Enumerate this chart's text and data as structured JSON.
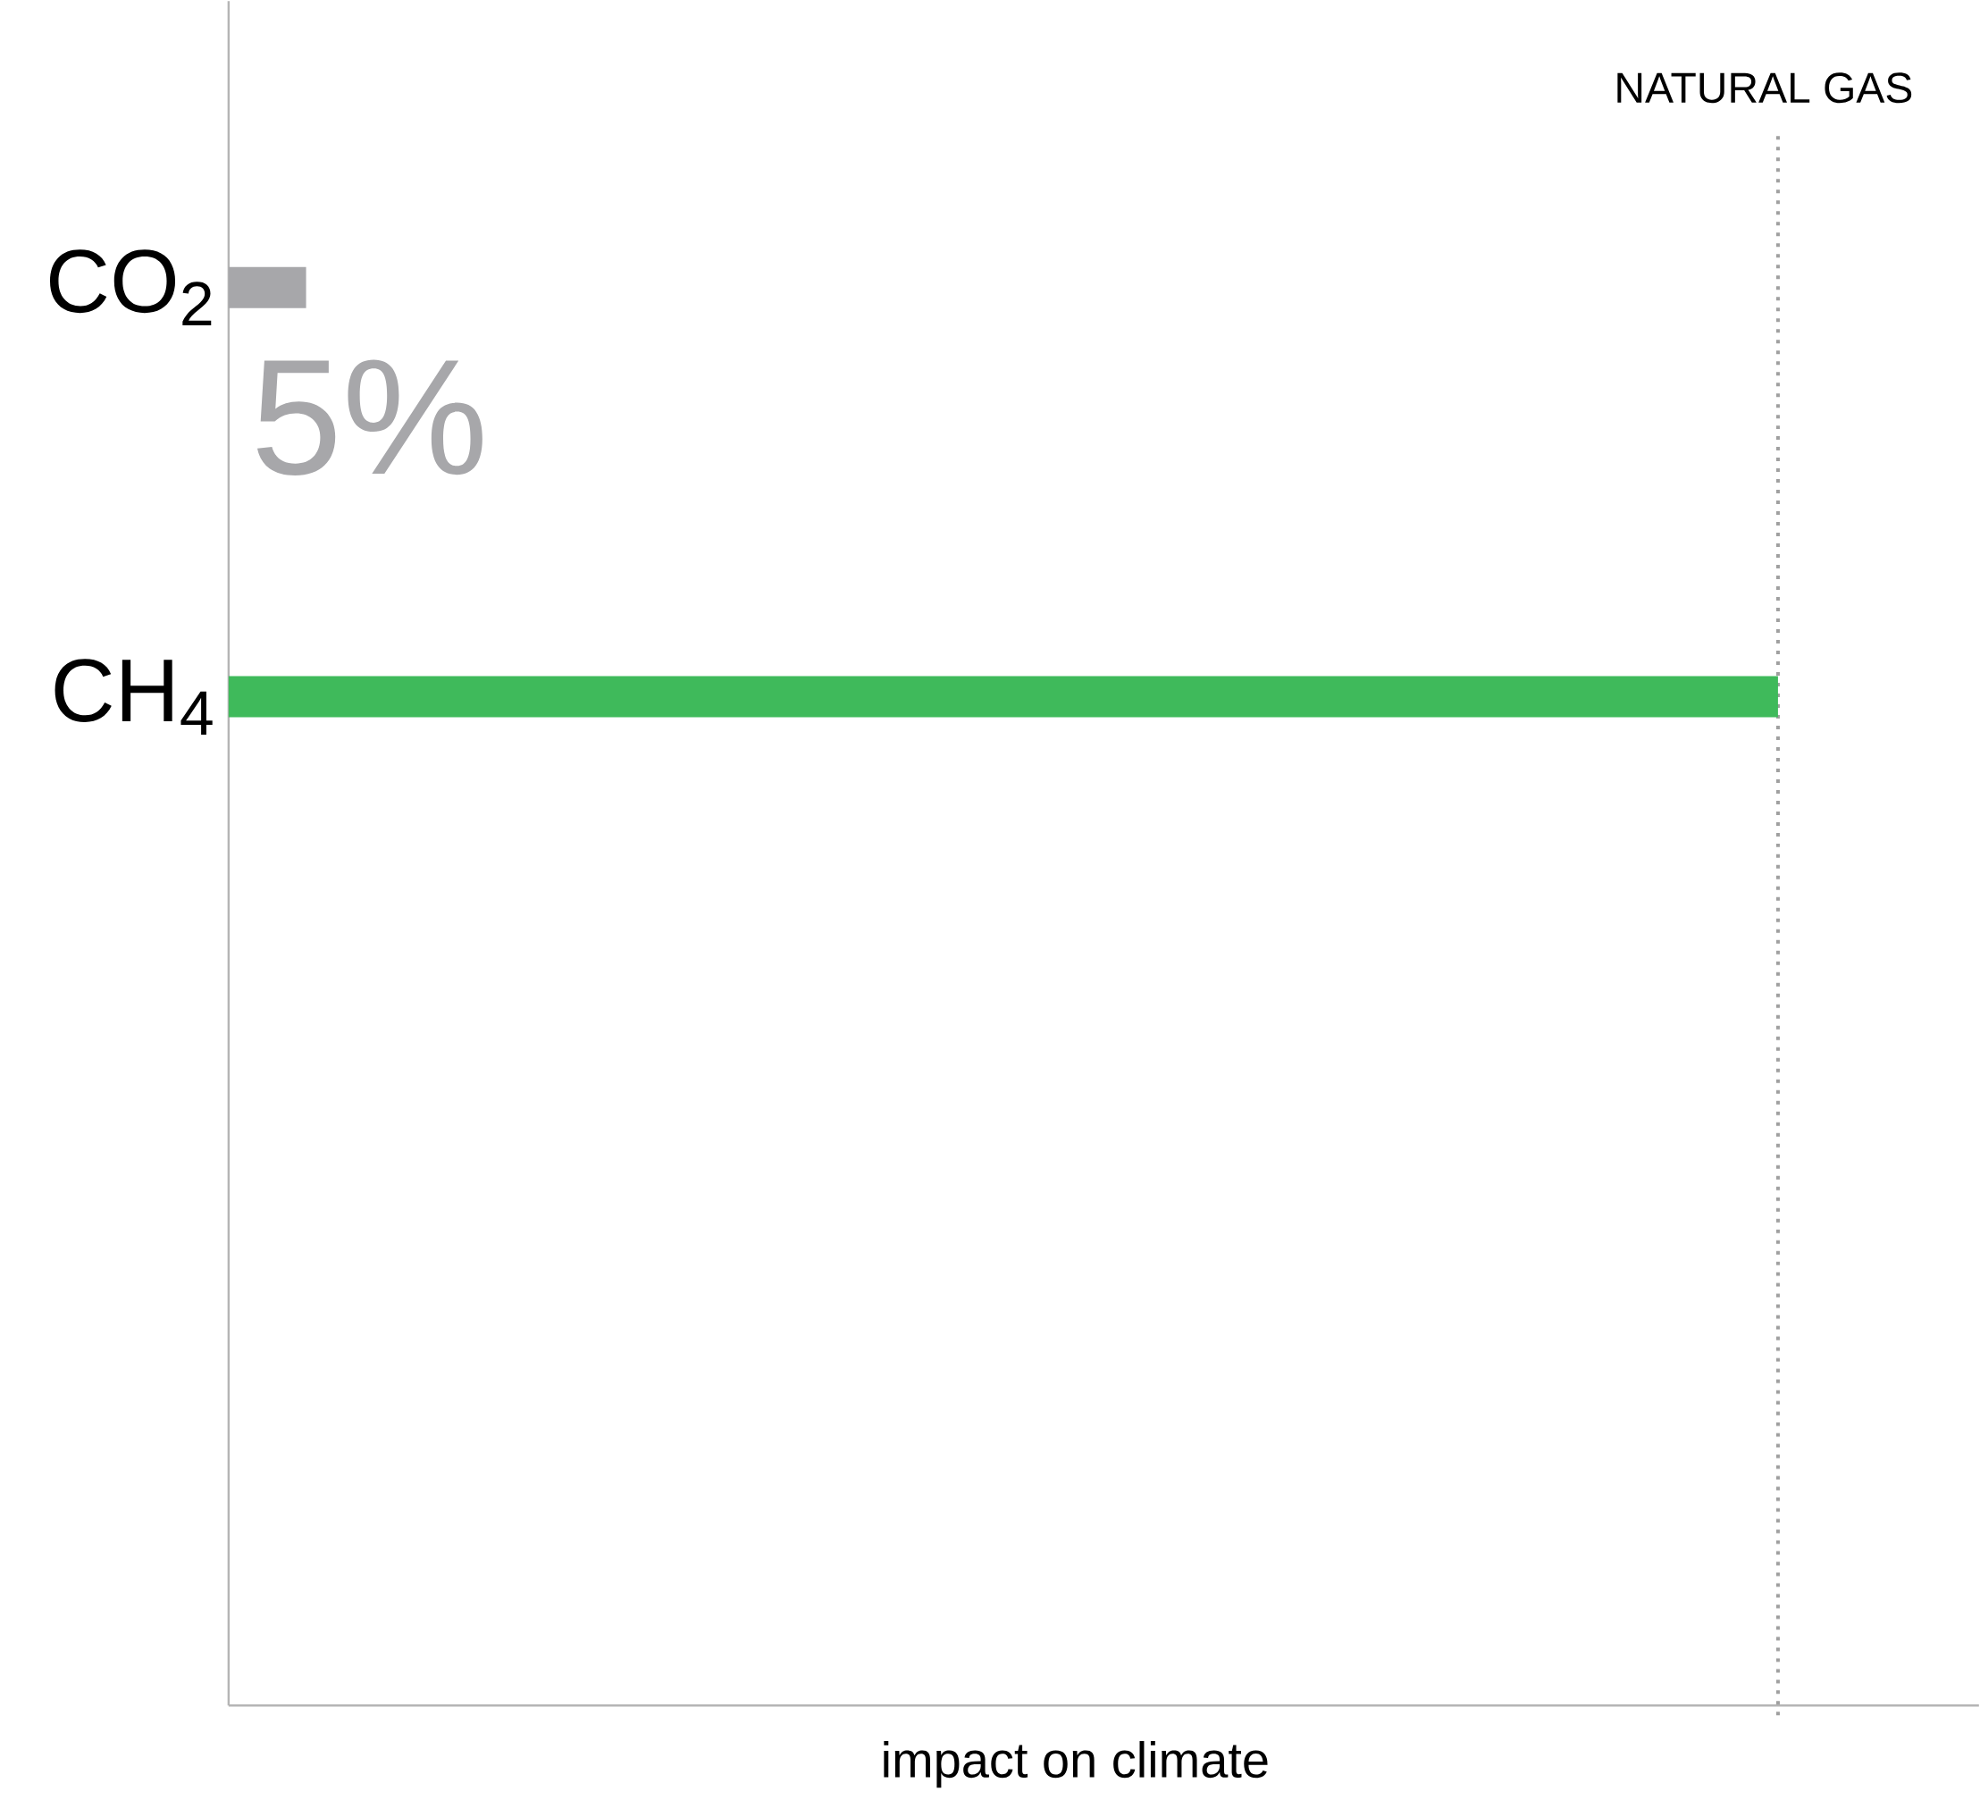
{
  "chart_data": {
    "type": "bar",
    "orientation": "horizontal",
    "categories": [
      "CO$_{2}$",
      "CH$_{4}$"
    ],
    "values": [
      5,
      100
    ],
    "colors": [
      "#a7a7aa",
      "#3fba5b"
    ],
    "value_labels": [
      "5%",
      null
    ],
    "annotations": [
      "impact on climate"
    ],
    "ref_lines": [
      {
        "axis": "x",
        "value": 100,
        "label": "NATURAL GAS",
        "color": "#a0a0a0",
        "line_style": "dotted"
      }
    ]
  }
}
